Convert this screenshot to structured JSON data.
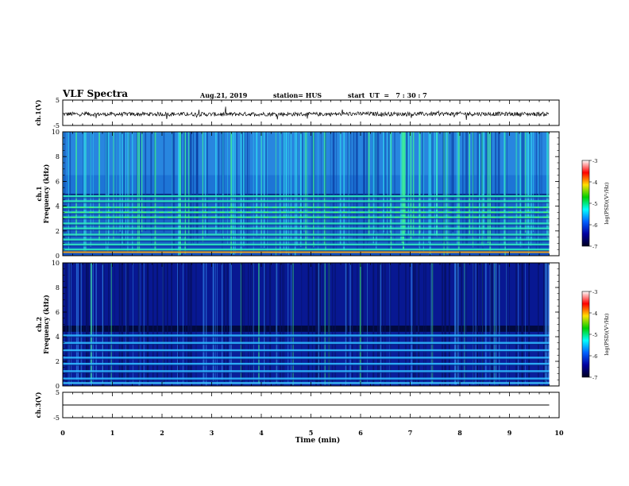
{
  "header": {
    "title": "VLF Spectra",
    "date": "Aug.21, 2019",
    "station": "station= HUS",
    "start": "start  UT  =   7 : 30 : 7"
  },
  "colorbar": {
    "label": "log(PSD)(V²/Hz)",
    "ticks": [
      "-3",
      "-4",
      "-5",
      "-6",
      "-7"
    ],
    "colors": [
      "#ffffff",
      "#ff0000",
      "#ffe000",
      "#00d000",
      "#00ffff",
      "#0060ff",
      "#0000a0",
      "#000020"
    ]
  },
  "chart_data": [
    {
      "type": "line",
      "panel": "ch1 waveform",
      "ylabel": "ch.1(V)",
      "ylim": [
        -5,
        5
      ],
      "yticks": [
        "5",
        "-5"
      ],
      "x": [
        0,
        1,
        2,
        3,
        4,
        5,
        6,
        7,
        8,
        9,
        9.8
      ],
      "y": [
        -0.5,
        -0.6,
        -0.5,
        -0.6,
        -0.5,
        -0.6,
        -0.4,
        -0.5,
        -0.4,
        -0.5,
        -0.5
      ]
    },
    {
      "type": "heatmap",
      "panel": "ch1 spectrogram",
      "ylabel": "ch.1 Frequency (kHz)",
      "ylim": [
        0,
        10
      ],
      "yticks": [
        "0",
        "2",
        "4",
        "6",
        "8",
        "10"
      ],
      "xlim": [
        0,
        9.8
      ],
      "line_frequencies_khz": [
        0.5,
        0.9,
        1.3,
        1.7,
        2.2,
        2.6,
        3.1,
        3.5,
        3.9,
        4.4,
        4.8
      ],
      "colorbar_range": [
        -7,
        -3
      ]
    },
    {
      "type": "heatmap",
      "panel": "ch2 spectrogram",
      "ylabel": "ch.2 Frequency (kHz)",
      "ylim": [
        0,
        10
      ],
      "yticks": [
        "0",
        "2",
        "4",
        "6",
        "8",
        "10"
      ],
      "xlim": [
        0,
        9.8
      ],
      "line_frequencies_khz": [
        0.6,
        1.2,
        1.8,
        2.3,
        2.9,
        3.5,
        4.1
      ],
      "colorbar_range": [
        -7,
        -3
      ]
    },
    {
      "type": "line",
      "panel": "ch3 waveform",
      "ylabel": "ch.3(V)",
      "ylim": [
        -5,
        5
      ],
      "yticks": [
        "5",
        "-5"
      ],
      "x": [
        0,
        9.8
      ],
      "y": [
        0,
        0
      ]
    }
  ],
  "xaxis": {
    "label": "Time  (min)",
    "ticks": [
      "0",
      "1",
      "2",
      "3",
      "4",
      "5",
      "6",
      "7",
      "8",
      "9",
      "10"
    ],
    "xlim": [
      0,
      10
    ]
  }
}
